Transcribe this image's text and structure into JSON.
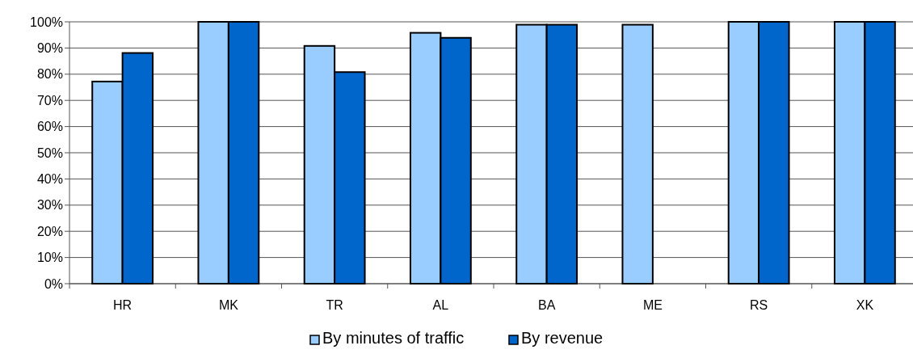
{
  "chart_data": {
    "type": "bar",
    "categories": [
      "HR",
      "MK",
      "TR",
      "AL",
      "BA",
      "ME",
      "RS",
      "XK"
    ],
    "series": [
      {
        "name": "By minutes of traffic",
        "color": "#99ccff",
        "values": [
          77.2,
          100,
          90.8,
          95.8,
          98.9,
          98.9,
          100,
          100
        ]
      },
      {
        "name": "By revenue",
        "color": "#0066cc",
        "values": [
          88.1,
          100,
          80.8,
          93.9,
          98.9,
          null,
          100,
          100
        ]
      }
    ],
    "ylim": [
      0,
      100
    ],
    "yticks": [
      {
        "value": 0,
        "label": "0%"
      },
      {
        "value": 10,
        "label": "10%"
      },
      {
        "value": 20,
        "label": "20%"
      },
      {
        "value": 30,
        "label": "30%"
      },
      {
        "value": 40,
        "label": "40%"
      },
      {
        "value": 50,
        "label": "50%"
      },
      {
        "value": 60,
        "label": "60%"
      },
      {
        "value": 70,
        "label": "70%"
      },
      {
        "value": 80,
        "label": "80%"
      },
      {
        "value": 90,
        "label": "90%"
      },
      {
        "value": 100,
        "label": "100%"
      }
    ],
    "grid": "y",
    "legend": "bottom"
  }
}
